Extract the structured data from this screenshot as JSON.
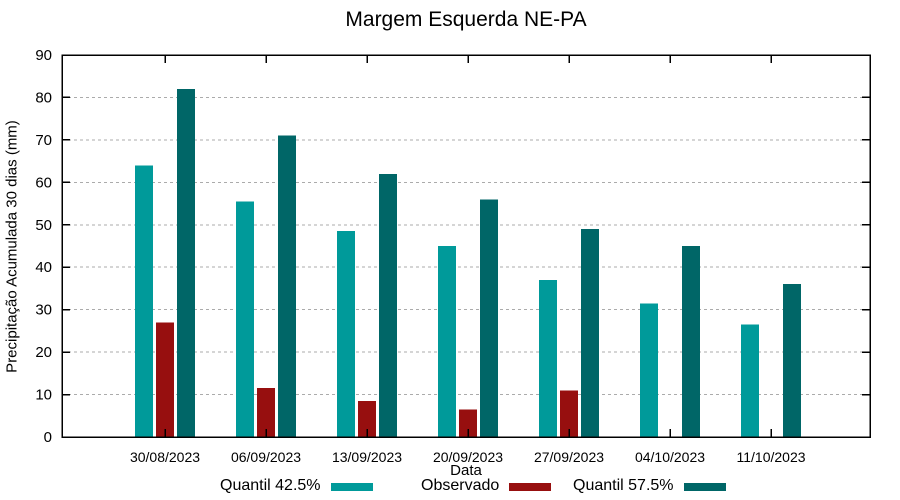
{
  "figure": {
    "title": "Margem Esquerda NE-PA"
  },
  "chart_data": {
    "type": "bar",
    "title": "Margem Esquerda NE-PA",
    "xlabel": "Data",
    "ylabel": "Precipitação Acumulada 30 dias (mm)",
    "categories": [
      "30/08/2023",
      "06/09/2023",
      "13/09/2023",
      "20/09/2023",
      "27/09/2023",
      "04/10/2023",
      "11/10/2023"
    ],
    "series": [
      {
        "name": "Quantil 42.5%",
        "color": "#009A9A",
        "values": [
          64,
          55.5,
          48.5,
          45,
          37,
          31.5,
          26.5
        ]
      },
      {
        "name": "Observado",
        "color": "#970F0F",
        "values": [
          27,
          11.5,
          8.5,
          6.5,
          11,
          null,
          null
        ]
      },
      {
        "name": "Quantil 57.5%",
        "color": "#006667",
        "values": [
          82,
          71,
          62,
          56,
          49,
          45,
          36
        ]
      }
    ],
    "ylim": [
      0,
      90
    ],
    "ytick_step": 10,
    "grid": "horizontal-dashed",
    "legend_position": "bottom"
  },
  "style": {
    "grid_color": "#ABABAB",
    "axis_color": "#000000",
    "text_color": "#000000",
    "background": "#FFFFFF"
  }
}
